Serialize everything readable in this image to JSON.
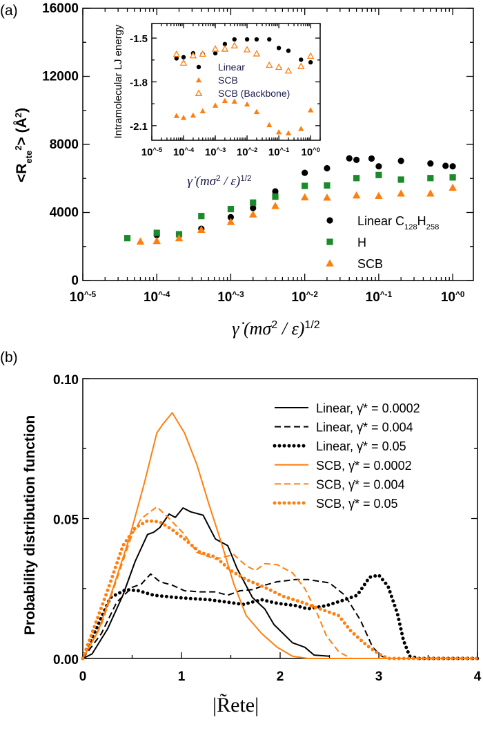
{
  "panel_labels": {
    "a": "(a)",
    "b": "(b)"
  },
  "colors": {
    "linear": "#000000",
    "h": "#1b8a2a",
    "scb": "#ff7f0e"
  },
  "chart_data": [
    {
      "id": "main",
      "type": "scatter",
      "xscale": "log",
      "xlim": [
        1e-05,
        1.9
      ],
      "ylim": [
        0,
        16000
      ],
      "xticks": [
        1e-05,
        0.0001,
        0.001,
        0.01,
        0.1,
        1
      ],
      "xtick_labels": [
        "10^-5",
        "10^-4",
        "10^-3",
        "10^-2",
        "10^-1",
        "10^0"
      ],
      "yticks": [
        0,
        4000,
        8000,
        12000,
        16000
      ],
      "ytick_labels": [
        "0",
        "4000",
        "8000",
        "12000",
        "16000"
      ],
      "xlabel": [
        {
          "t": "γ̇ ",
          "serif": true
        },
        {
          "t": "(mσ",
          "serif": true
        },
        {
          "t": "2",
          "sup": true
        },
        {
          "t": " / ε)",
          "serif": true
        },
        {
          "t": "1/2",
          "sup": true
        }
      ],
      "ylabel": [
        {
          "t": "<R"
        },
        {
          "t": "ete",
          "sub": true
        },
        {
          "t": "2",
          "sup": true
        },
        {
          "t": "> ("
        },
        {
          "t": "Å"
        },
        {
          "t": "2",
          "sup": true
        },
        {
          "t": ")"
        }
      ],
      "legend_position": "lower-right",
      "series": [
        {
          "key": "linear",
          "marker": "circle",
          "name": [
            {
              "t": "Linear C"
            },
            {
              "t": "128",
              "sub": true
            },
            {
              "t": "H"
            },
            {
              "t": "258",
              "sub": true
            }
          ],
          "x": [
            0.0001,
            0.0004,
            0.001,
            0.002,
            0.004,
            0.01,
            0.02,
            0.04,
            0.05,
            0.08,
            0.1,
            0.2,
            0.5,
            0.8,
            1
          ],
          "y": [
            2670,
            3040,
            3720,
            4260,
            5240,
            6330,
            6600,
            7180,
            7090,
            7170,
            6710,
            7030,
            6880,
            6740,
            6710
          ]
        },
        {
          "key": "h",
          "marker": "square",
          "name": [
            {
              "t": "H"
            }
          ],
          "x": [
            4e-05,
            0.0001,
            0.0002,
            0.0004,
            0.001,
            0.002,
            0.004,
            0.01,
            0.02,
            0.05,
            0.1,
            0.2,
            0.5,
            1
          ],
          "y": [
            2490,
            2800,
            2720,
            3790,
            4200,
            4580,
            4930,
            5560,
            5590,
            6020,
            6200,
            5930,
            6020,
            6060
          ]
        },
        {
          "key": "scb",
          "marker": "triangle",
          "name": [
            {
              "t": "SCB"
            }
          ],
          "x": [
            6e-05,
            0.0001,
            0.0002,
            0.0004,
            0.001,
            0.002,
            0.004,
            0.01,
            0.02,
            0.05,
            0.1,
            0.2,
            0.5,
            1
          ],
          "y": [
            2300,
            2330,
            2490,
            2990,
            3450,
            3890,
            4390,
            4900,
            4880,
            5010,
            4980,
            5120,
            5120,
            5460
          ]
        }
      ]
    },
    {
      "id": "inset",
      "type": "scatter",
      "xscale": "log",
      "xlim": [
        1e-05,
        2
      ],
      "ylim": [
        -2.2,
        -1.4
      ],
      "xticks": [
        1e-05,
        0.0001,
        0.001,
        0.01,
        0.1,
        1
      ],
      "xtick_labels": [
        "10^-5",
        "10^-4",
        "10^-3",
        "10^-2",
        "10^-1",
        "10^0"
      ],
      "yticks": [
        -1.5,
        -1.8,
        -2.1
      ],
      "ytick_labels": [
        "-1.5",
        "-1.8",
        "-2.1"
      ],
      "xlabel": [
        {
          "t": "γ̇ ",
          "serif": true
        },
        {
          "t": "(mσ",
          "serif": true
        },
        {
          "t": "2",
          "sup": true
        },
        {
          "t": " / ε)",
          "serif": true
        },
        {
          "t": "1/2",
          "sup": true
        }
      ],
      "ylabel": [
        {
          "t": "Intramolecular LJ energy"
        }
      ],
      "legend_position": "center",
      "series": [
        {
          "key": "linear",
          "marker": "circle",
          "name": [
            {
              "t": "Linear"
            }
          ],
          "x": [
            6e-05,
            0.0001,
            0.0002,
            0.0004,
            0.001,
            0.002,
            0.004,
            0.01,
            0.02,
            0.05,
            0.1,
            0.2,
            0.5,
            1
          ],
          "y": [
            -1.639,
            -1.631,
            -1.604,
            -1.609,
            -1.604,
            -1.541,
            -1.509,
            -1.509,
            -1.509,
            -1.509,
            -1.568,
            -1.587,
            -1.648,
            -1.666
          ]
        },
        {
          "key": "scb",
          "marker": "triangle",
          "name": [
            {
              "t": "SCB"
            }
          ],
          "x": [
            6e-05,
            0.0001,
            0.0002,
            0.0004,
            0.001,
            0.002,
            0.004,
            0.01,
            0.02,
            0.05,
            0.1,
            0.2,
            0.5,
            1
          ],
          "y": [
            -2.032,
            -2.045,
            -2.029,
            -2.0,
            -1.961,
            -1.929,
            -1.934,
            -1.953,
            -2.005,
            -2.095,
            -2.144,
            -2.151,
            -2.121,
            -1.993
          ]
        },
        {
          "key": "scb",
          "marker": "triangle-open",
          "name": [
            {
              "t": "SCB (Backbone)"
            }
          ],
          "x": [
            6e-05,
            0.0001,
            0.0002,
            0.0004,
            0.001,
            0.002,
            0.004,
            0.01,
            0.02,
            0.05,
            0.1,
            0.2,
            0.5,
            1
          ],
          "y": [
            -1.61,
            -1.67,
            -1.62,
            -1.609,
            -1.574,
            -1.574,
            -1.552,
            -1.579,
            -1.607,
            -1.685,
            -1.699,
            -1.724,
            -1.693,
            -1.623
          ]
        }
      ]
    },
    {
      "id": "pdf",
      "type": "line",
      "xlim": [
        0,
        4
      ],
      "ylim": [
        0,
        0.1
      ],
      "xticks": [
        0,
        1,
        2,
        3,
        4
      ],
      "xtick_labels": [
        "0",
        "1",
        "2",
        "3",
        "4"
      ],
      "yticks": [
        0,
        0.05,
        0.1
      ],
      "ytick_labels": [
        "0.00",
        "0.05",
        "0.10"
      ],
      "xlabel": "|R̃ete|",
      "ylabel": "Probability distribution function",
      "legend_position": "top-right",
      "series": [
        {
          "key": "linear",
          "style": "solid",
          "name": "Linear,  γ̇* = 0.0002",
          "x": [
            0,
            0.094,
            0.25,
            0.406,
            0.531,
            0.656,
            0.719,
            0.781,
            0.875,
            0.938,
            1.016,
            1.094,
            1.219,
            1.344,
            1.469,
            1.563,
            1.719,
            1.844,
            1.938,
            2.125,
            2.25,
            2.344,
            2.5
          ],
          "y": [
            0,
            0.0016,
            0.0105,
            0.0226,
            0.0347,
            0.0443,
            0.0451,
            0.0468,
            0.0516,
            0.0504,
            0.0538,
            0.0524,
            0.0512,
            0.0427,
            0.0403,
            0.0322,
            0.0218,
            0.0177,
            0.0121,
            0.0056,
            0.004,
            0.0012,
            0.0008
          ]
        },
        {
          "key": "linear",
          "style": "dashed",
          "name": "Linear,  γ̇* = 0.004",
          "x": [
            0,
            0.188,
            0.344,
            0.5,
            0.594,
            0.688,
            0.781,
            0.906,
            1.031,
            1.188,
            1.344,
            1.469,
            1.594,
            1.719,
            1.844,
            1.969,
            2.156,
            2.281,
            2.5,
            2.656,
            2.813,
            2.938,
            3.031,
            3.094
          ],
          "y": [
            0,
            0.0089,
            0.0201,
            0.0254,
            0.0266,
            0.0302,
            0.0274,
            0.0262,
            0.0242,
            0.0238,
            0.0238,
            0.0226,
            0.0242,
            0.0246,
            0.0262,
            0.0274,
            0.0282,
            0.0282,
            0.027,
            0.0226,
            0.0137,
            0.004,
            0.0008,
            0
          ]
        },
        {
          "key": "linear",
          "style": "dotted",
          "name": "Linear,  γ̇* = 0.05",
          "x": [
            0,
            0.156,
            0.281,
            0.438,
            0.563,
            0.719,
            0.938,
            1.094,
            1.281,
            1.469,
            1.625,
            1.813,
            1.969,
            2.156,
            2.281,
            2.469,
            2.656,
            2.781,
            2.906,
            3.0,
            3.094,
            3.188,
            3.25,
            3.313,
            3.406,
            4
          ],
          "y": [
            0,
            0.0121,
            0.0218,
            0.0246,
            0.0242,
            0.0226,
            0.0218,
            0.0214,
            0.021,
            0.0201,
            0.0193,
            0.021,
            0.0197,
            0.0189,
            0.0177,
            0.0189,
            0.021,
            0.0226,
            0.029,
            0.0298,
            0.0258,
            0.0161,
            0.0064,
            0.0008,
            0,
            0
          ]
        },
        {
          "key": "scb",
          "style": "solid",
          "name": "SCB,  γ̇* = 0.0002",
          "x": [
            0,
            0.156,
            0.313,
            0.469,
            0.625,
            0.75,
            0.813,
            0.906,
            1.031,
            1.156,
            1.281,
            1.406,
            1.531,
            1.656,
            1.813,
            1.969,
            2.125,
            2.281,
            4
          ],
          "y": [
            0,
            0.0097,
            0.0258,
            0.0427,
            0.0629,
            0.0806,
            0.0838,
            0.0878,
            0.0806,
            0.0693,
            0.0548,
            0.0411,
            0.0266,
            0.0153,
            0.0089,
            0.004,
            0.0008,
            0,
            0
          ]
        },
        {
          "key": "scb",
          "style": "dashed",
          "name": "SCB,  γ̇* = 0.004",
          "x": [
            0,
            0.188,
            0.344,
            0.5,
            0.594,
            0.75,
            0.875,
            1.031,
            1.156,
            1.344,
            1.531,
            1.656,
            1.75,
            1.844,
            1.969,
            2.125,
            2.25,
            2.375,
            2.469,
            2.594,
            2.719,
            4
          ],
          "y": [
            0,
            0.0121,
            0.0282,
            0.0443,
            0.05,
            0.0542,
            0.05,
            0.0443,
            0.0379,
            0.0355,
            0.0371,
            0.0331,
            0.0314,
            0.0339,
            0.0335,
            0.0306,
            0.025,
            0.0161,
            0.0081,
            0.0024,
            0,
            0
          ]
        },
        {
          "key": "scb",
          "style": "dotted",
          "name": "SCB,  γ̇* = 0.05",
          "x": [
            0,
            0.125,
            0.25,
            0.406,
            0.531,
            0.656,
            0.781,
            0.906,
            1.031,
            1.188,
            1.344,
            1.5,
            1.656,
            1.844,
            2.031,
            2.219,
            2.406,
            2.594,
            2.719,
            2.875,
            3.0,
            3.094,
            4
          ],
          "y": [
            0,
            0.0121,
            0.0242,
            0.0403,
            0.0467,
            0.0492,
            0.0488,
            0.046,
            0.0427,
            0.0379,
            0.0363,
            0.0314,
            0.0282,
            0.0254,
            0.0222,
            0.0201,
            0.0177,
            0.0153,
            0.0097,
            0.0048,
            0.0016,
            0,
            0
          ]
        }
      ]
    }
  ]
}
